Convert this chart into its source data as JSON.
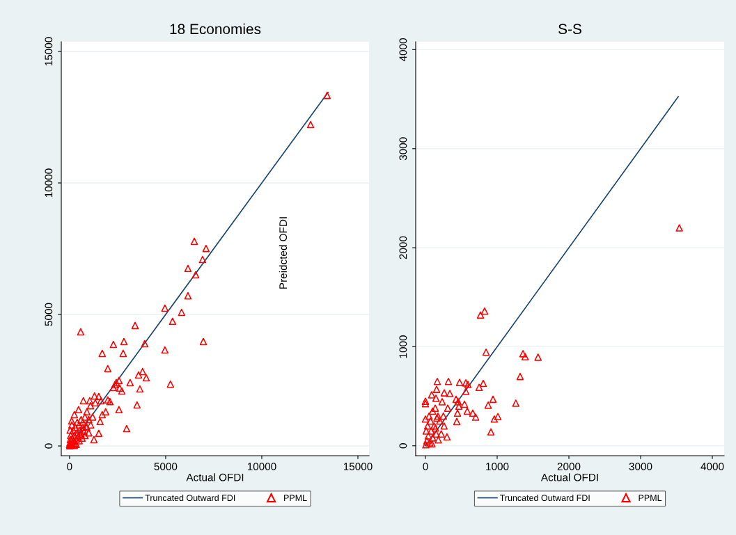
{
  "chart_data": [
    {
      "type": "line",
      "title": "18 Economies",
      "xlabel": "Actual OFDI",
      "ylabel": "Preidcted OFDI",
      "xlim": [
        -430,
        15580
      ],
      "ylim": [
        -370,
        15370
      ],
      "xticks": [
        0,
        5000,
        10000,
        15000
      ],
      "yticks": [
        0,
        5000,
        10000,
        15000
      ],
      "grid": "y",
      "legend": "bottom",
      "series": [
        {
          "name": "Truncated Outward FDI",
          "color": "#1a476f",
          "marker": "none",
          "line_style": "solid",
          "x": [
            0,
            13450
          ],
          "values": [
            0,
            13450
          ]
        },
        {
          "name": "PPML",
          "type": "scatter",
          "color": "#ff0000",
          "marker": "triangle",
          "x": [
            13400,
            12540,
            6490,
            7100,
            6920,
            6160,
            6560,
            6160,
            4960,
            5830,
            5360,
            3410,
            580,
            2830,
            2280,
            3910,
            6960,
            1700,
            2790,
            4960,
            1990,
            3800,
            3590,
            3990,
            2570,
            2430,
            2360,
            3150,
            2280,
            2610,
            2720,
            3660,
            5250,
            1300,
            1520,
            720,
            1050,
            1990,
            2100,
            1340,
            1630,
            1090,
            2570,
            3510,
            1880,
            1700,
            470,
            250,
            2970,
            1590,
            1270,
            1520,
            870,
            110,
            0,
            20,
            50,
            80,
            100,
            150,
            200,
            250,
            300,
            350,
            400,
            450,
            500,
            550,
            600,
            650,
            700,
            750,
            800,
            30,
            60,
            120,
            200,
            300,
            400,
            500,
            600,
            700,
            800,
            900,
            1000,
            1100,
            900,
            1000,
            1200,
            40,
            10,
            150,
            250,
            350
          ],
          "values": [
            13330,
            12220,
            7780,
            7510,
            7090,
            6750,
            6510,
            5710,
            5240,
            5080,
            4740,
            4580,
            4340,
            3970,
            3860,
            3890,
            3970,
            3520,
            3520,
            3650,
            2940,
            2830,
            2700,
            2590,
            2490,
            2410,
            2330,
            2410,
            2220,
            2200,
            2090,
            2170,
            2350,
            1900,
            1880,
            1720,
            1720,
            1750,
            1690,
            1640,
            1720,
            1530,
            1380,
            1560,
            1300,
            1190,
            1380,
            1190,
            660,
            930,
            240,
            480,
            740,
            950,
            50,
            120,
            30,
            200,
            80,
            300,
            150,
            400,
            100,
            250,
            500,
            350,
            200,
            600,
            450,
            300,
            700,
            550,
            400,
            600,
            400,
            800,
            600,
            700,
            900,
            800,
            1000,
            900,
            1100,
            700,
            1000,
            800,
            1300,
            500,
            1100,
            250,
            10,
            50,
            20,
            60
          ]
        }
      ]
    },
    {
      "type": "line",
      "title": "S-S",
      "xlabel": "Actual OFDI",
      "xlim": [
        -136,
        4165
      ],
      "ylim": [
        -100,
        4080
      ],
      "xticks": [
        0,
        1000,
        2000,
        3000,
        4000
      ],
      "yticks": [
        0,
        1000,
        2000,
        3000,
        4000
      ],
      "grid": "y",
      "legend": "bottom",
      "series": [
        {
          "name": "Truncated Outward FDI",
          "color": "#1a476f",
          "marker": "none",
          "line_style": "solid",
          "x": [
            0,
            3525
          ],
          "values": [
            0,
            3525
          ]
        },
        {
          "name": "PPML",
          "type": "scatter",
          "color": "#ff0000",
          "marker": "triangle",
          "x": [
            3540,
            825,
            767,
            845,
            1360,
            1390,
            1570,
            1320,
            1260,
            165,
            320,
            476,
            563,
            592,
            806,
            748,
            155,
            262,
            340,
            87,
            563,
            146,
            0,
            0,
            233,
            427,
            942,
            874,
            544,
            456,
            136,
            466,
            311,
            583,
            447,
            660,
            700,
            1010,
            960,
            437,
            913,
            175,
            0,
            300,
            5,
            20,
            40,
            60,
            80,
            100,
            120,
            150,
            180,
            200,
            30,
            50,
            70,
            100,
            140,
            10,
            220,
            260,
            90,
            160,
            250
          ],
          "values": [
            2200,
            1360,
            1320,
            945,
            930,
            900,
            895,
            700,
            430,
            650,
            650,
            640,
            635,
            620,
            630,
            590,
            570,
            535,
            528,
            515,
            550,
            480,
            450,
            425,
            445,
            470,
            470,
            410,
            420,
            445,
            380,
            400,
            380,
            350,
            330,
            330,
            290,
            295,
            270,
            245,
            140,
            300,
            270,
            90,
            10,
            50,
            100,
            30,
            150,
            80,
            200,
            120,
            60,
            250,
            200,
            300,
            250,
            350,
            180,
            150,
            120,
            200,
            20,
            280,
            300
          ]
        }
      ]
    }
  ]
}
